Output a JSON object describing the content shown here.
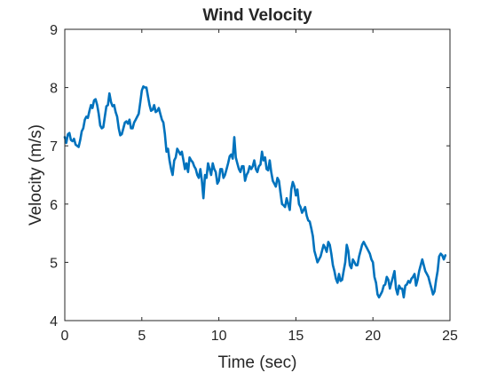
{
  "chart_data": {
    "type": "line",
    "title": "Wind Velocity",
    "xlabel": "Time (sec)",
    "ylabel": "Velocity (m/s)",
    "xlim": [
      0,
      25
    ],
    "ylim": [
      4,
      9
    ],
    "xticks": [
      0,
      5,
      10,
      15,
      20,
      25
    ],
    "yticks": [
      4,
      5,
      6,
      7,
      8,
      9
    ],
    "grid": false,
    "legend": "none",
    "line_color": "#0072BD",
    "series": [
      {
        "x": [
          0.0,
          0.1,
          0.2,
          0.3,
          0.4,
          0.5,
          0.6,
          0.7,
          0.8,
          0.9,
          1.0,
          1.1,
          1.2,
          1.3,
          1.4,
          1.5,
          1.6,
          1.7,
          1.8,
          1.9,
          2.0,
          2.1,
          2.2,
          2.3,
          2.4,
          2.5,
          2.6,
          2.7,
          2.8,
          2.9,
          3.0,
          3.1,
          3.2,
          3.3,
          3.4,
          3.5,
          3.6,
          3.7,
          3.8,
          3.9,
          4.0,
          4.1,
          4.2,
          4.3,
          4.4,
          4.5,
          4.6,
          4.7,
          4.8,
          4.9,
          5.0,
          5.1,
          5.2,
          5.3,
          5.4,
          5.5,
          5.6,
          5.7,
          5.8,
          5.9,
          6.0,
          6.1,
          6.2,
          6.3,
          6.4,
          6.5,
          6.6,
          6.7,
          6.8,
          6.9,
          7.0,
          7.1,
          7.2,
          7.3,
          7.4,
          7.5,
          7.6,
          7.7,
          7.8,
          7.9,
          8.0,
          8.1,
          8.2,
          8.3,
          8.4,
          8.5,
          8.6,
          8.7,
          8.8,
          8.9,
          9.0,
          9.1,
          9.2,
          9.3,
          9.4,
          9.5,
          9.6,
          9.7,
          9.8,
          9.9,
          10.0,
          10.1,
          10.2,
          10.3,
          10.4,
          10.5,
          10.6,
          10.7,
          10.8,
          10.9,
          11.0,
          11.1,
          11.2,
          11.3,
          11.4,
          11.5,
          11.6,
          11.7,
          11.8,
          11.9,
          12.0,
          12.1,
          12.2,
          12.3,
          12.4,
          12.5,
          12.6,
          12.7,
          12.8,
          12.9,
          13.0,
          13.1,
          13.2,
          13.3,
          13.4,
          13.5,
          13.6,
          13.7,
          13.8,
          13.9,
          14.0,
          14.1,
          14.2,
          14.3,
          14.4,
          14.5,
          14.6,
          14.7,
          14.8,
          14.9,
          15.0,
          15.1,
          15.2,
          15.3,
          15.4,
          15.5,
          15.6,
          15.7,
          15.8,
          15.9,
          16.0,
          16.1,
          16.2,
          16.3,
          16.4,
          16.5,
          16.6,
          16.7,
          16.8,
          16.9,
          17.0,
          17.1,
          17.2,
          17.3,
          17.4,
          17.5,
          17.6,
          17.7,
          17.8,
          17.9,
          18.0,
          18.1,
          18.2,
          18.3,
          18.4,
          18.5,
          18.6,
          18.7,
          18.8,
          18.9,
          19.0,
          19.1,
          19.2,
          19.3,
          19.4,
          19.5,
          19.6,
          19.7,
          19.8,
          19.9,
          20.0,
          20.1,
          20.2,
          20.3,
          20.4,
          20.5,
          20.6,
          20.7,
          20.8,
          20.9,
          21.0,
          21.1,
          21.2,
          21.3,
          21.4,
          21.5,
          21.6,
          21.7,
          21.8,
          21.9,
          22.0,
          22.1,
          22.2,
          22.3,
          22.4,
          22.5,
          22.6,
          22.7,
          22.8,
          22.9,
          23.0,
          23.1,
          23.2,
          23.3,
          23.4,
          23.5,
          23.6,
          23.7,
          23.8,
          23.9,
          24.0,
          24.1,
          24.2,
          24.3,
          24.4,
          24.5,
          24.6,
          24.7
        ],
        "values": [
          7.15,
          7.05,
          7.2,
          7.22,
          7.1,
          7.08,
          7.12,
          7.02,
          7.0,
          6.98,
          7.1,
          7.25,
          7.3,
          7.45,
          7.5,
          7.48,
          7.6,
          7.7,
          7.65,
          7.78,
          7.8,
          7.7,
          7.55,
          7.35,
          7.3,
          7.32,
          7.5,
          7.68,
          7.7,
          7.9,
          7.75,
          7.68,
          7.7,
          7.58,
          7.5,
          7.3,
          7.18,
          7.2,
          7.3,
          7.4,
          7.42,
          7.38,
          7.45,
          7.3,
          7.3,
          7.4,
          7.45,
          7.5,
          7.55,
          7.75,
          7.95,
          8.02,
          8.0,
          8.0,
          7.85,
          7.7,
          7.6,
          7.62,
          7.7,
          7.58,
          7.6,
          7.65,
          7.55,
          7.45,
          7.4,
          7.2,
          6.9,
          6.95,
          6.75,
          6.6,
          6.5,
          6.75,
          6.8,
          6.95,
          6.9,
          6.85,
          6.9,
          6.75,
          6.6,
          6.7,
          6.55,
          6.8,
          6.75,
          6.72,
          6.65,
          6.6,
          6.5,
          6.45,
          6.6,
          6.4,
          6.1,
          6.5,
          6.45,
          6.7,
          6.6,
          6.5,
          6.7,
          6.6,
          6.55,
          6.35,
          6.4,
          6.6,
          6.6,
          6.45,
          6.5,
          6.6,
          6.7,
          6.82,
          6.85,
          6.78,
          7.15,
          6.8,
          6.7,
          6.6,
          6.55,
          6.65,
          6.65,
          6.4,
          6.5,
          6.55,
          6.65,
          6.6,
          6.65,
          6.75,
          6.6,
          6.55,
          6.65,
          6.68,
          6.9,
          6.75,
          6.8,
          6.6,
          6.58,
          6.75,
          6.55,
          6.4,
          6.35,
          6.3,
          6.45,
          6.4,
          6.2,
          6.0,
          5.98,
          5.95,
          6.1,
          6.0,
          5.9,
          6.25,
          6.38,
          6.3,
          6.15,
          6.25,
          6.0,
          5.95,
          5.85,
          5.9,
          5.95,
          5.8,
          5.72,
          5.7,
          5.58,
          5.45,
          5.2,
          5.1,
          5.0,
          5.05,
          5.1,
          5.2,
          5.3,
          5.25,
          5.18,
          5.35,
          5.3,
          5.15,
          4.95,
          4.85,
          4.72,
          4.65,
          4.8,
          4.68,
          4.7,
          4.85,
          5.0,
          5.3,
          5.2,
          4.95,
          4.9,
          5.05,
          5.0,
          4.95,
          4.95,
          5.1,
          5.2,
          5.3,
          5.35,
          5.3,
          5.25,
          5.2,
          5.15,
          5.05,
          5.0,
          4.75,
          4.65,
          4.45,
          4.4,
          4.45,
          4.5,
          4.6,
          4.62,
          4.75,
          4.7,
          4.55,
          4.65,
          4.75,
          4.85,
          4.55,
          4.45,
          4.6,
          4.55,
          4.55,
          4.4,
          4.6,
          4.62,
          4.68,
          4.65,
          4.72,
          4.75,
          4.8,
          4.6,
          4.7,
          4.85,
          4.95,
          5.05,
          4.95,
          4.85,
          4.8,
          4.75,
          4.65,
          4.55,
          4.45,
          4.5,
          4.7,
          4.85,
          5.1,
          5.15,
          5.12,
          5.05,
          5.12
        ]
      }
    ]
  }
}
